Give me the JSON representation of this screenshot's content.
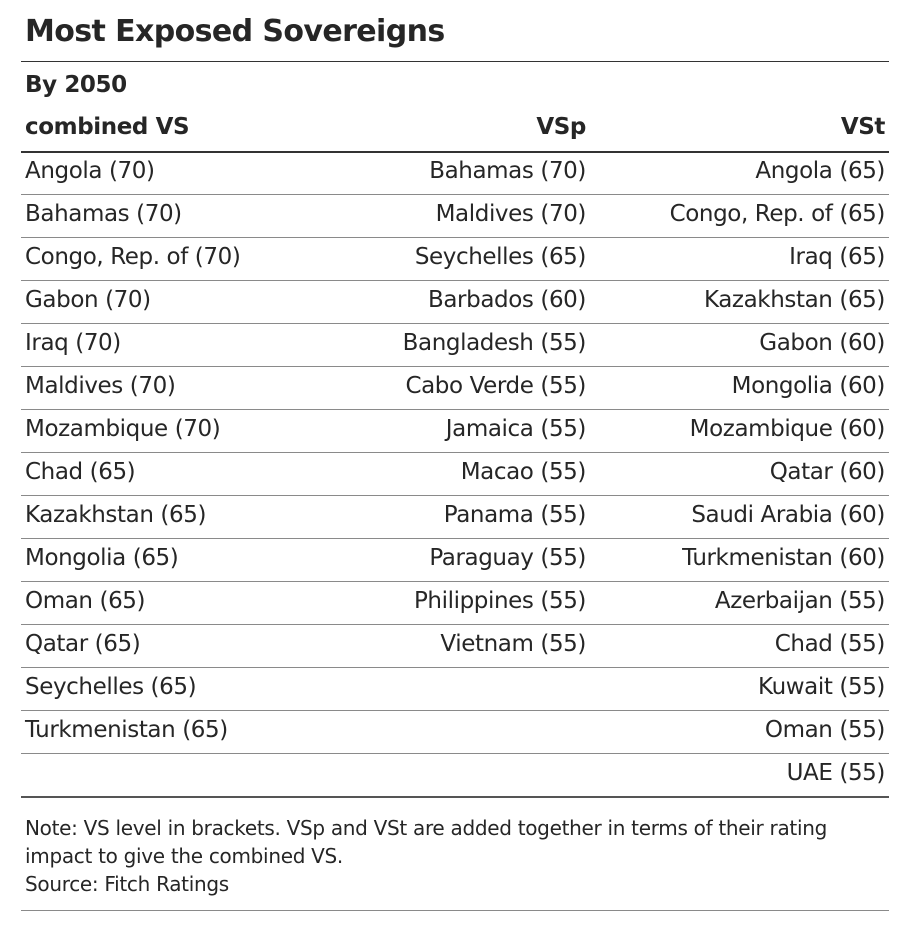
{
  "title": "Most Exposed Sovereigns",
  "subtitle": "By 2050",
  "columns": [
    "combined VS",
    "VSp",
    "VSt"
  ],
  "rows": [
    [
      "Angola (70)",
      "Bahamas (70)",
      "Angola (65)"
    ],
    [
      "Bahamas (70)",
      "Maldives (70)",
      "Congo, Rep. of (65)"
    ],
    [
      "Congo, Rep. of (70)",
      "Seychelles (65)",
      "Iraq (65)"
    ],
    [
      "Gabon (70)",
      "Barbados (60)",
      "Kazakhstan (65)"
    ],
    [
      "Iraq (70)",
      "Bangladesh (55)",
      "Gabon (60)"
    ],
    [
      "Maldives (70)",
      "Cabo Verde (55)",
      "Mongolia (60)"
    ],
    [
      "Mozambique (70)",
      "Jamaica (55)",
      "Mozambique (60)"
    ],
    [
      "Chad (65)",
      "Macao (55)",
      "Qatar (60)"
    ],
    [
      "Kazakhstan (65)",
      "Panama (55)",
      "Saudi Arabia (60)"
    ],
    [
      "Mongolia (65)",
      "Paraguay (55)",
      "Turkmenistan (60)"
    ],
    [
      "Oman (65)",
      "Philippines (55)",
      "Azerbaijan (55)"
    ],
    [
      "Qatar (65)",
      "Vietnam (55)",
      "Chad (55)"
    ],
    [
      "Seychelles (65)",
      "",
      "Kuwait (55)"
    ],
    [
      "Turkmenistan (65)",
      "",
      "Oman (55)"
    ],
    [
      "",
      "",
      "UAE (55)"
    ]
  ],
  "note": {
    "line1": "Note: VS level in brackets. VSp and VSt are added together in terms of their rating",
    "line2": "impact to give the combined VS.",
    "source": "Source: Fitch Ratings"
  }
}
